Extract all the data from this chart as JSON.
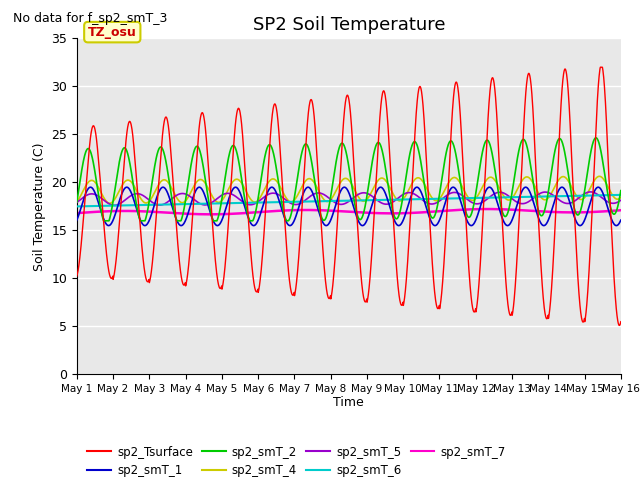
{
  "title": "SP2 Soil Temperature",
  "no_data_text": "No data for f_sp2_smT_3",
  "xlabel": "Time",
  "ylabel": "Soil Temperature (C)",
  "ylim": [
    0,
    35
  ],
  "xlim": [
    0,
    15
  ],
  "tz_label": "TZ_osu",
  "x_ticks": [
    0,
    1,
    2,
    3,
    4,
    5,
    6,
    7,
    8,
    9,
    10,
    11,
    12,
    13,
    14,
    15
  ],
  "x_tick_labels": [
    "May 1",
    "May 2",
    "May 3",
    "May 4",
    "May 5",
    "May 6",
    "May 7",
    "May 8",
    "May 9",
    "May 10",
    "May 11",
    "May 12",
    "May 13",
    "May 14",
    "May 15",
    "May 16"
  ],
  "background_color": "#e8e8e8",
  "grid_color": "#ffffff",
  "legend": [
    {
      "label": "sp2_Tsurface",
      "color": "#ff0000"
    },
    {
      "label": "sp2_smT_1",
      "color": "#0000cc"
    },
    {
      "label": "sp2_smT_2",
      "color": "#00cc00"
    },
    {
      "label": "sp2_smT_4",
      "color": "#cccc00"
    },
    {
      "label": "sp2_smT_5",
      "color": "#9900cc"
    },
    {
      "label": "sp2_smT_6",
      "color": "#00cccc"
    },
    {
      "label": "sp2_smT_7",
      "color": "#ff00cc"
    }
  ]
}
